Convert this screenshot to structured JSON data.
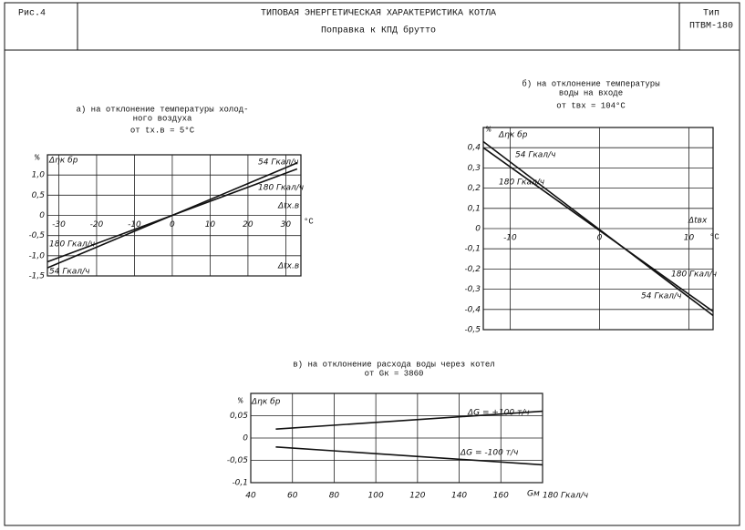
{
  "header": {
    "figure": "Рис.4",
    "title": "ТИПОВАЯ ЭНЕРГЕТИЧЕСКАЯ ХАРАКТЕРИСТИКА КОТЛА",
    "subtitle": "Поправка к КПД брутто",
    "type_label": "Тип",
    "type": "ПТВМ-180"
  },
  "chart_data": [
    {
      "type": "line",
      "title": [
        "а) на отклонение температуры холод-",
        "ного воздуха",
        "от tх.в = 5°C"
      ],
      "y_unit": "%",
      "y_label": "Δηк бр",
      "x_label": "Δtх.в",
      "x_unit": "°C",
      "x": [
        -33,
        33
      ],
      "series": [
        {
          "name": "54 Гкал/ч",
          "color": "#111",
          "values": [
            -1.3,
            1.3
          ]
        },
        {
          "name": "180 Гкал/ч",
          "color": "#111",
          "values": [
            -1.15,
            1.15
          ]
        }
      ],
      "xlim": [
        -33,
        34
      ],
      "xticks": [
        -30,
        -20,
        -10,
        0,
        10,
        20,
        30
      ],
      "ylim": [
        -1.5,
        1.5
      ],
      "yticks": [
        {
          "value": 1.0,
          "label": "1,0"
        },
        {
          "value": 0.5,
          "label": "0,5"
        },
        0,
        {
          "value": -0.5,
          "label": "-0,5"
        },
        {
          "value": -1.0,
          "label": "-1,0"
        },
        {
          "value": -1.5,
          "label": "-1,5"
        }
      ],
      "grid": true
    },
    {
      "type": "line",
      "title": [
        "б) на отклонение температуры",
        "воды на входе",
        "от tвх = 104°C"
      ],
      "y_unit": "%",
      "y_label": "Δηк бр",
      "x_label": "Δtвх",
      "x_unit": "°C",
      "x": [
        -13,
        12.7
      ],
      "series": [
        {
          "name": "54 Гкал/ч",
          "color": "#111",
          "values": [
            0.43,
            -0.43
          ]
        },
        {
          "name": "180 Гкал/ч",
          "color": "#111",
          "values": [
            0.4,
            -0.41
          ]
        }
      ],
      "xlim": [
        -13,
        12.7
      ],
      "xticks": [
        -10,
        0,
        10
      ],
      "ylim": [
        -0.5,
        0.5
      ],
      "yticks": [
        {
          "value": 0.4,
          "label": "0,4"
        },
        {
          "value": 0.3,
          "label": "0,3"
        },
        {
          "value": 0.2,
          "label": "0,2"
        },
        {
          "value": 0.1,
          "label": "0,1"
        },
        0,
        {
          "value": -0.1,
          "label": "-0,1"
        },
        {
          "value": -0.2,
          "label": "-0,2"
        },
        {
          "value": -0.3,
          "label": "-0,3"
        },
        {
          "value": -0.4,
          "label": "-0,4"
        },
        {
          "value": -0.5,
          "label": "-0,5"
        }
      ],
      "grid": true
    },
    {
      "type": "line",
      "title": [
        "в) на отклонение расхода воды через котел",
        "от Gк = 3860"
      ],
      "y_unit": "%",
      "y_label": "Δηк бр",
      "x_label": "Gм",
      "x": [
        52,
        180
      ],
      "series": [
        {
          "name": "ΔG = +100 т/ч",
          "color": "#111",
          "values": [
            0.02,
            0.06
          ]
        },
        {
          "name": "ΔG = -100 т/ч",
          "color": "#111",
          "values": [
            -0.02,
            -0.06
          ]
        }
      ],
      "xlim": [
        40,
        180
      ],
      "xticks": [
        40,
        60,
        80,
        100,
        120,
        140,
        160,
        {
          "value": 180,
          "label": "180 Гкал/ч"
        }
      ],
      "ylim": [
        -0.1,
        0.1
      ],
      "yticks": [
        {
          "value": 0.05,
          "label": "0,05"
        },
        0,
        {
          "value": -0.05,
          "label": "-0,05"
        },
        {
          "value": -0.1,
          "label": "-0,1"
        }
      ],
      "grid": true
    }
  ]
}
